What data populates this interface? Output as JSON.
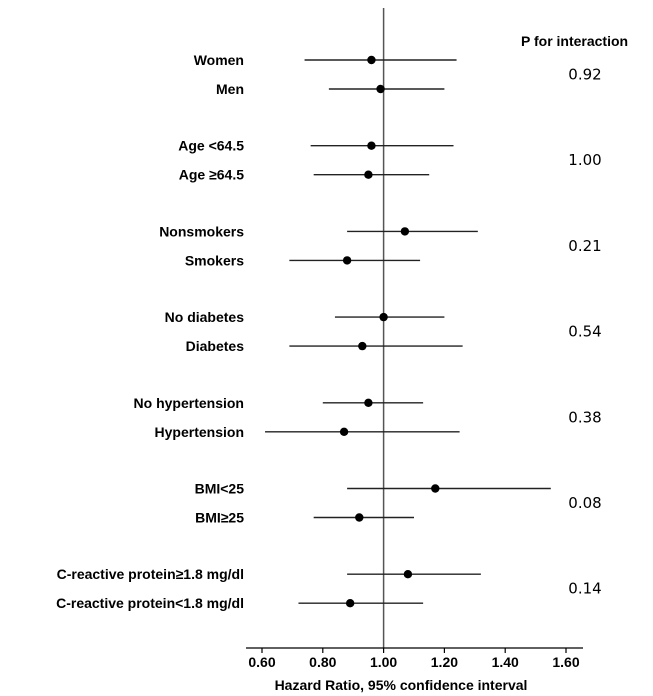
{
  "chart_data": {
    "type": "forest",
    "xlabel": "Hazard Ratio, 95% confidence interval",
    "xlim": [
      0.55,
      1.62
    ],
    "x_ticks": [
      "0.60",
      "0.80",
      "1.00",
      "1.20",
      "1.40",
      "1.60"
    ],
    "reference_line": 1.0,
    "p_header": "P for interaction",
    "rows": [
      {
        "label": "Women",
        "hr": 0.96,
        "lo": 0.74,
        "hi": 1.24
      },
      {
        "label": "Men",
        "hr": 0.99,
        "lo": 0.82,
        "hi": 1.2
      },
      {
        "label": "Age <64.5",
        "hr": 0.96,
        "lo": 0.76,
        "hi": 1.23
      },
      {
        "label": "Age ≥64.5",
        "hr": 0.95,
        "lo": 0.77,
        "hi": 1.15
      },
      {
        "label": "Nonsmokers",
        "hr": 1.07,
        "lo": 0.88,
        "hi": 1.31
      },
      {
        "label": "Smokers",
        "hr": 0.88,
        "lo": 0.69,
        "hi": 1.12
      },
      {
        "label": "No diabetes",
        "hr": 1.0,
        "lo": 0.84,
        "hi": 1.2
      },
      {
        "label": "Diabetes",
        "hr": 0.93,
        "lo": 0.69,
        "hi": 1.26
      },
      {
        "label": "No hypertension",
        "hr": 0.95,
        "lo": 0.8,
        "hi": 1.13
      },
      {
        "label": "Hypertension",
        "hr": 0.87,
        "lo": 0.61,
        "hi": 1.25
      },
      {
        "label": "BMI<25",
        "hr": 1.17,
        "lo": 0.88,
        "hi": 1.55
      },
      {
        "label": "BMI≥25",
        "hr": 0.92,
        "lo": 0.77,
        "hi": 1.1
      },
      {
        "label": "C-reactive protein≥1.8 mg/dl",
        "hr": 1.08,
        "lo": 0.88,
        "hi": 1.32
      },
      {
        "label": "C-reactive protein<1.8 mg/dl",
        "hr": 0.89,
        "lo": 0.72,
        "hi": 1.13
      }
    ],
    "p_values": [
      "0.92",
      "1.00",
      "0.21",
      "0.54",
      "0.38",
      "0.08",
      "0.14"
    ],
    "grid": false
  }
}
